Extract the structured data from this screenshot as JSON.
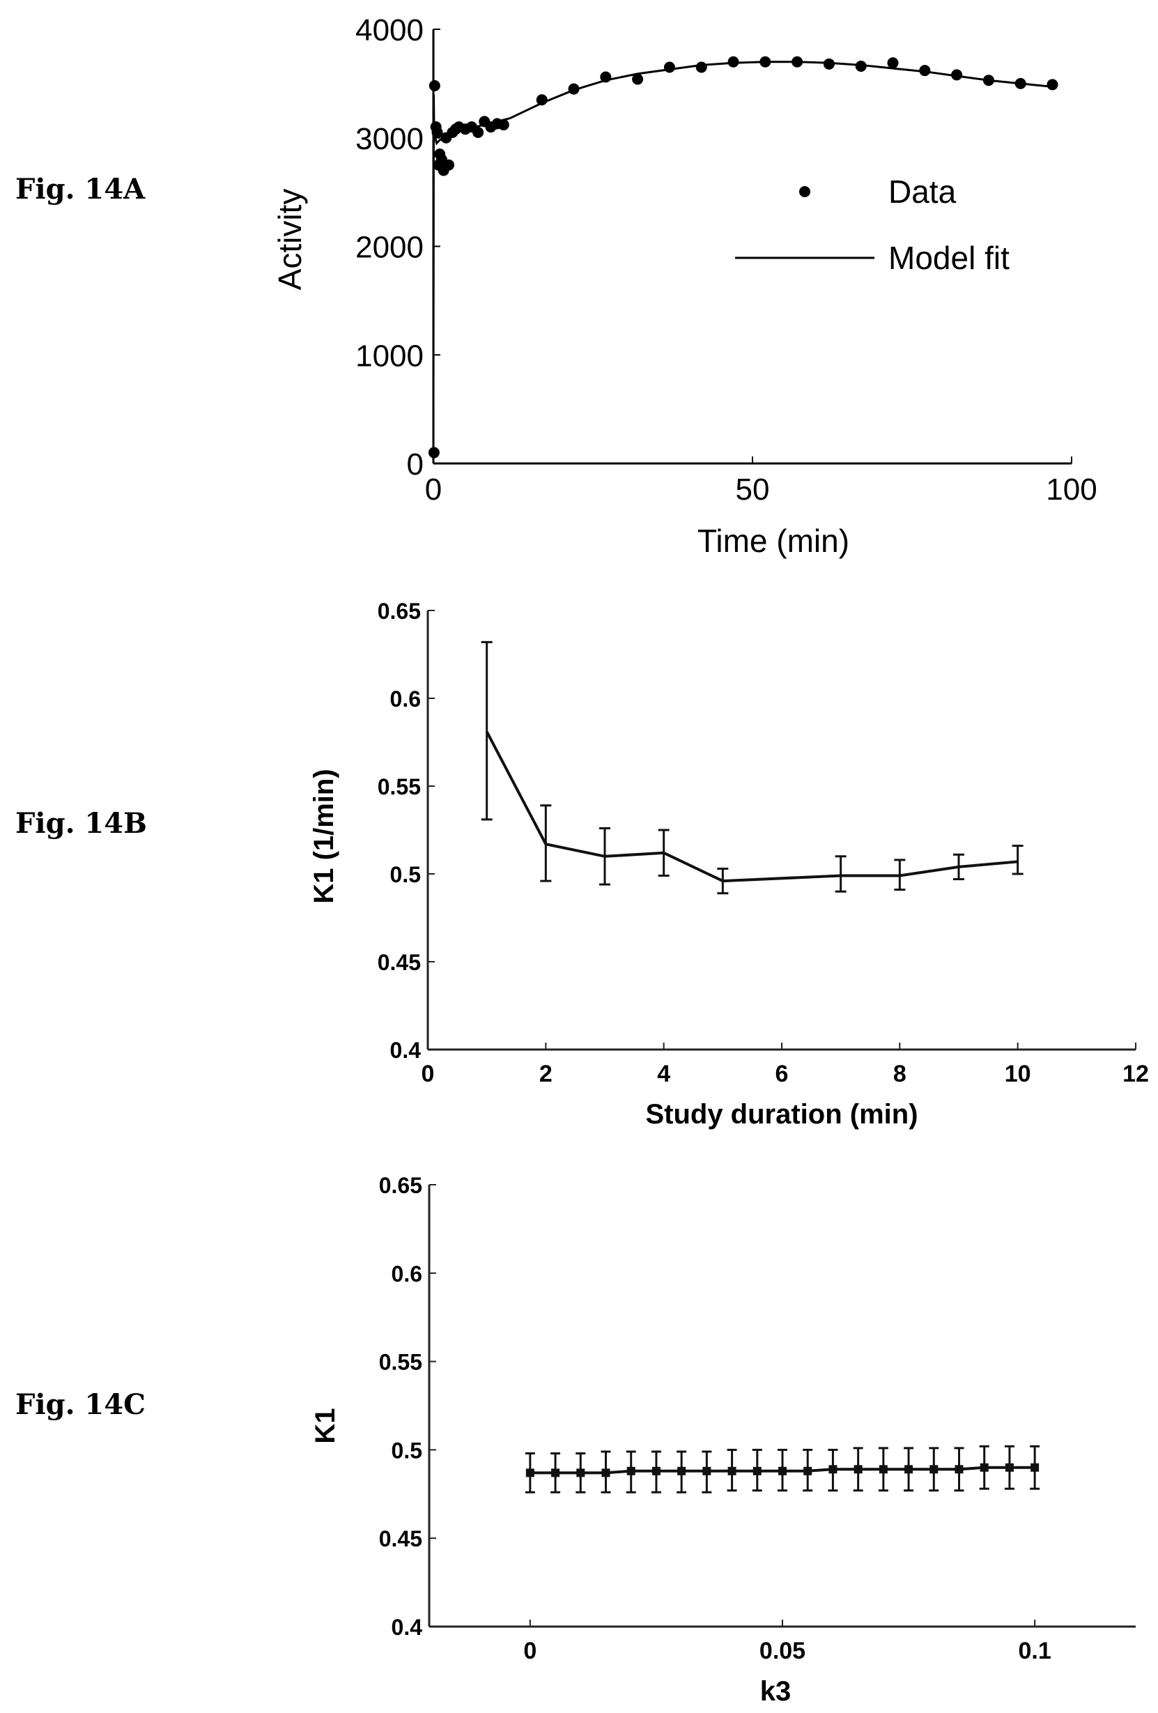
{
  "figure_labels": [
    "Fig. 14A",
    "Fig. 14B",
    "Fig. 14C"
  ],
  "chart_data": [
    {
      "type": "scatter",
      "title": "",
      "xlabel": "Time (min)",
      "ylabel": "Activity",
      "xlim": [
        0,
        100
      ],
      "ylim": [
        0,
        4000
      ],
      "xticks": [
        0,
        50,
        100
      ],
      "yticks": [
        0,
        1000,
        2000,
        3000,
        4000
      ],
      "xtick_labels": [
        "0",
        "50",
        "100"
      ],
      "ytick_labels": [
        "0",
        "1000",
        "2000",
        "3000",
        "4000"
      ],
      "legend": {
        "position": "right",
        "entries": [
          {
            "label": "Data",
            "marker": "dot"
          },
          {
            "label": "Model fit",
            "marker": "line"
          }
        ]
      },
      "series": [
        {
          "name": "Data",
          "type": "scatter",
          "x": [
            0.1,
            0.2,
            0.4,
            0.6,
            0.8,
            1.0,
            1.3,
            1.6,
            2.0,
            2.4,
            3.0,
            3.5,
            4.0,
            5.0,
            6.0,
            7.0,
            8.0,
            9.0,
            10.0,
            11.0,
            17.0,
            22.0,
            27.0,
            32.0,
            37.0,
            42.0,
            47.0,
            52.0,
            57.0,
            62.0,
            67.0,
            72.0,
            77.0,
            82.0,
            87.0,
            92.0,
            97.0
          ],
          "y": [
            100,
            3480,
            3100,
            3050,
            2750,
            2850,
            2800,
            2700,
            3000,
            2750,
            3050,
            3080,
            3100,
            3080,
            3100,
            3050,
            3150,
            3100,
            3130,
            3120,
            3350,
            3450,
            3560,
            3540,
            3650,
            3650,
            3700,
            3700,
            3700,
            3680,
            3660,
            3690,
            3620,
            3580,
            3530,
            3500,
            3490
          ]
        },
        {
          "name": "Model fit",
          "type": "line",
          "x": [
            0,
            0.05,
            0.1,
            0.3,
            0.5,
            1,
            2,
            3,
            5,
            8,
            12,
            17,
            22,
            27,
            32,
            37,
            42,
            47,
            52,
            57,
            62,
            67,
            72,
            77,
            82,
            87,
            92,
            97
          ],
          "y": [
            500,
            3400,
            3150,
            3000,
            2950,
            2980,
            3000,
            3040,
            3080,
            3120,
            3180,
            3320,
            3440,
            3530,
            3590,
            3630,
            3670,
            3690,
            3700,
            3700,
            3690,
            3670,
            3640,
            3610,
            3570,
            3530,
            3500,
            3470
          ]
        }
      ]
    },
    {
      "type": "line",
      "title": "",
      "xlabel": "Study duration (min)",
      "ylabel": "K1 (1/min)",
      "xlim": [
        0,
        12
      ],
      "ylim": [
        0.4,
        0.65
      ],
      "xticks": [
        0,
        2,
        4,
        6,
        8,
        10,
        12
      ],
      "yticks": [
        0.4,
        0.45,
        0.5,
        0.55,
        0.6,
        0.65
      ],
      "xtick_labels": [
        "0",
        "2",
        "4",
        "6",
        "8",
        "10",
        "12"
      ],
      "ytick_labels": [
        "0.4",
        "0.45",
        "0.5",
        "0.55",
        "0.6",
        "0.65"
      ],
      "series": [
        {
          "x": [
            1,
            2,
            3,
            4,
            5,
            7,
            8,
            9,
            10
          ],
          "y": [
            0.581,
            0.517,
            0.51,
            0.512,
            0.496,
            0.499,
            0.499,
            0.504,
            0.507
          ],
          "err_low": [
            0.531,
            0.496,
            0.494,
            0.499,
            0.489,
            0.49,
            0.491,
            0.497,
            0.5
          ],
          "err_high": [
            0.632,
            0.539,
            0.526,
            0.525,
            0.503,
            0.51,
            0.508,
            0.511,
            0.516
          ]
        }
      ]
    },
    {
      "type": "line",
      "title": "",
      "xlabel": "k3",
      "ylabel": "K1",
      "xlim": [
        -0.02,
        0.12
      ],
      "ylim": [
        0.4,
        0.65
      ],
      "xticks": [
        0,
        0.05,
        0.1
      ],
      "yticks": [
        0.4,
        0.45,
        0.5,
        0.55,
        0.6,
        0.65
      ],
      "xtick_labels": [
        "0",
        "0.05",
        "0.1"
      ],
      "ytick_labels": [
        "0.4",
        "0.45",
        "0.5",
        "0.55",
        "0.6",
        "0.65"
      ],
      "series": [
        {
          "x": [
            0,
            0.005,
            0.01,
            0.015,
            0.02,
            0.025,
            0.03,
            0.035,
            0.04,
            0.045,
            0.05,
            0.055,
            0.06,
            0.065,
            0.07,
            0.075,
            0.08,
            0.085,
            0.09,
            0.095,
            0.1
          ],
          "y": [
            0.487,
            0.487,
            0.487,
            0.487,
            0.488,
            0.488,
            0.488,
            0.488,
            0.488,
            0.488,
            0.488,
            0.488,
            0.489,
            0.489,
            0.489,
            0.489,
            0.489,
            0.489,
            0.49,
            0.49,
            0.49
          ],
          "err_low": [
            0.476,
            0.476,
            0.476,
            0.476,
            0.476,
            0.476,
            0.476,
            0.476,
            0.477,
            0.477,
            0.477,
            0.477,
            0.477,
            0.477,
            0.477,
            0.477,
            0.477,
            0.477,
            0.478,
            0.478,
            0.478
          ],
          "err_high": [
            0.498,
            0.498,
            0.498,
            0.499,
            0.499,
            0.499,
            0.499,
            0.499,
            0.5,
            0.5,
            0.5,
            0.5,
            0.5,
            0.501,
            0.501,
            0.501,
            0.501,
            0.501,
            0.502,
            0.502,
            0.502
          ]
        }
      ]
    }
  ]
}
